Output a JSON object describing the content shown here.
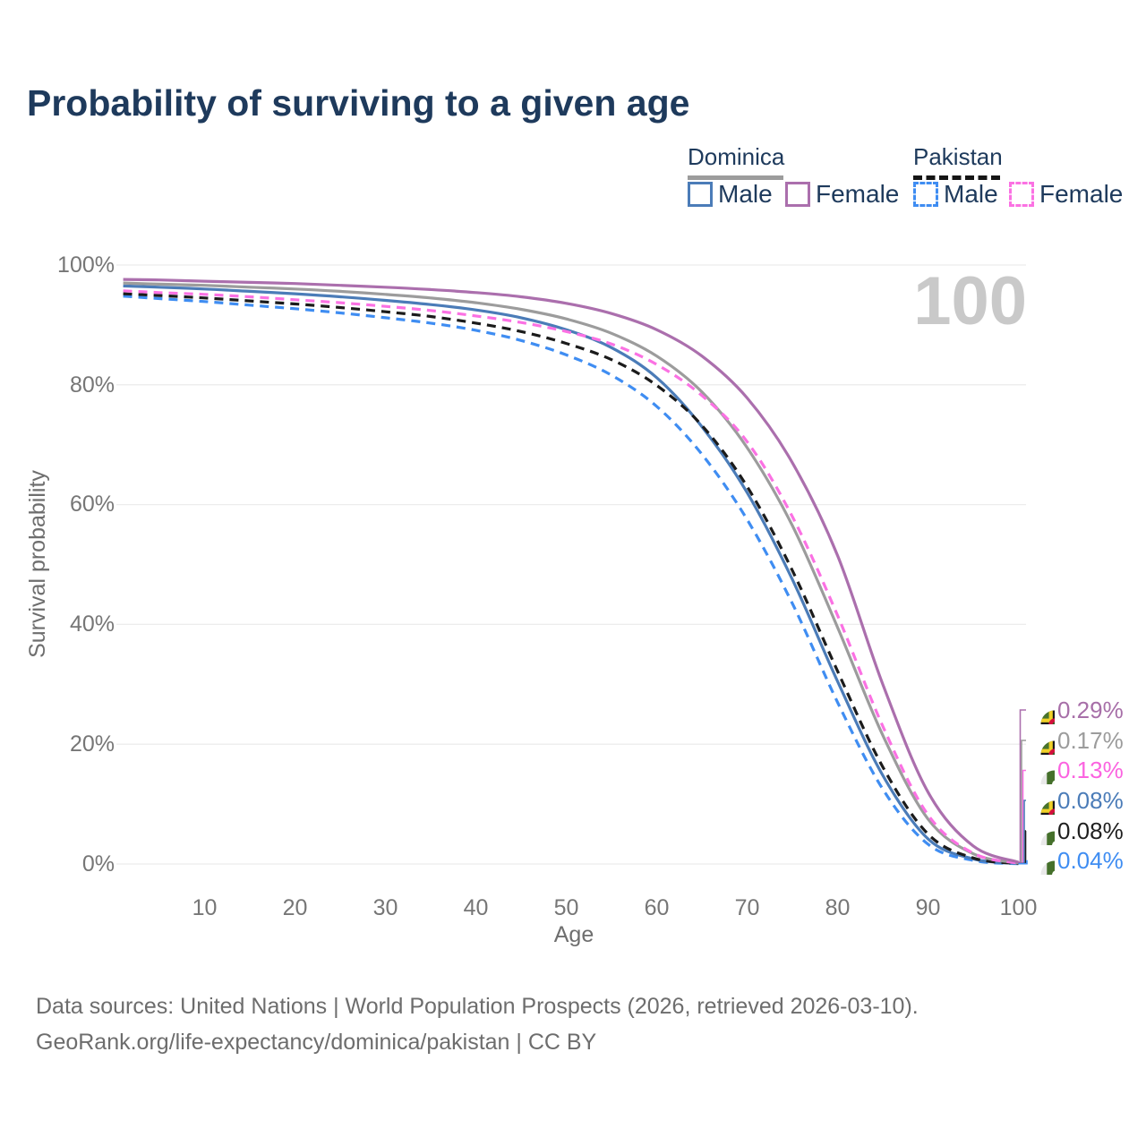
{
  "title": "Probability of surviving to a given age",
  "watermark": "100",
  "legend": {
    "groups": [
      {
        "country": "Dominica",
        "line_style": "solid",
        "items": [
          {
            "label": "Male",
            "color": "#4b7cb8"
          },
          {
            "label": "Female",
            "color": "#ae73b0"
          }
        ]
      },
      {
        "country": "Pakistan",
        "line_style": "dashed",
        "items": [
          {
            "label": "Male",
            "color": "#3f8df2"
          },
          {
            "label": "Female",
            "color": "#fb71e3"
          }
        ]
      }
    ]
  },
  "chart_data": {
    "type": "line",
    "title": "Probability of surviving to a given age",
    "xlabel": "Age",
    "ylabel": "Survival probability",
    "xlim": [
      0,
      100
    ],
    "ylim": [
      0,
      100
    ],
    "grid": "horizontal",
    "x_tick_labels": [
      "10",
      "20",
      "30",
      "40",
      "50",
      "60",
      "70",
      "80",
      "90",
      "100"
    ],
    "y_tick_labels": [
      "0%",
      "20%",
      "40%",
      "60%",
      "80%",
      "100%"
    ],
    "ages": [
      1,
      5,
      10,
      15,
      20,
      25,
      30,
      35,
      40,
      45,
      50,
      55,
      60,
      65,
      70,
      75,
      80,
      85,
      90,
      95,
      100
    ],
    "series": [
      {
        "name": "Dominica Female",
        "country": "Dominica",
        "sex": "Female",
        "style": "solid",
        "color": "#ab6fad",
        "label_color": "#a76fa8",
        "flag": "dominica",
        "end_label": "0.29%",
        "values": [
          97.6,
          97.5,
          97.3,
          97.1,
          96.9,
          96.6,
          96.3,
          95.9,
          95.4,
          94.7,
          93.6,
          91.9,
          89.2,
          84.8,
          77.8,
          67.0,
          51.5,
          30.0,
          12.0,
          3.0,
          0.29
        ]
      },
      {
        "name": "Dominica Both sexes",
        "country": "Dominica",
        "sex": "Both sexes",
        "style": "solid",
        "color": "#9c9c9c",
        "label_color": "#9c9c9c",
        "flag": "dominica",
        "end_label": "0.17%",
        "values": [
          97.0,
          96.8,
          96.6,
          96.3,
          96.0,
          95.6,
          95.1,
          94.5,
          93.7,
          92.6,
          91.0,
          88.6,
          84.8,
          78.8,
          69.5,
          56.5,
          39.5,
          21.5,
          7.5,
          1.7,
          0.17
        ]
      },
      {
        "name": "Pakistan Female",
        "country": "Pakistan",
        "sex": "Female",
        "style": "dashed",
        "color": "#fb71e3",
        "label_color": "#fb63e0",
        "flag": "pakistan",
        "end_label": "0.13%",
        "values": [
          95.7,
          95.4,
          95.1,
          94.7,
          94.2,
          93.7,
          93.1,
          92.4,
          91.5,
          90.4,
          88.9,
          86.8,
          83.4,
          78.2,
          70.5,
          58.0,
          41.5,
          23.0,
          8.2,
          1.8,
          0.13
        ]
      },
      {
        "name": "Dominica Male",
        "country": "Dominica",
        "sex": "Male",
        "style": "solid",
        "color": "#4b7cb8",
        "label_color": "#4b7cb8",
        "flag": "dominica",
        "end_label": "0.08%",
        "values": [
          96.5,
          96.3,
          96.0,
          95.6,
          95.2,
          94.7,
          94.1,
          93.4,
          92.5,
          91.2,
          89.2,
          86.2,
          81.2,
          73.0,
          62.0,
          47.5,
          30.5,
          14.8,
          4.2,
          0.85,
          0.08
        ]
      },
      {
        "name": "Pakistan Both sexes",
        "country": "Pakistan",
        "sex": "Both sexes",
        "style": "dashed",
        "color": "#1b1b1b",
        "label_color": "#1f1f1f",
        "flag": "pakistan",
        "end_label": "0.08%",
        "values": [
          95.2,
          94.9,
          94.5,
          94.0,
          93.5,
          92.9,
          92.2,
          91.4,
          90.3,
          88.9,
          86.9,
          84.2,
          79.9,
          73.2,
          63.0,
          49.0,
          32.2,
          16.2,
          5.0,
          1.0,
          0.08
        ]
      },
      {
        "name": "Pakistan Male",
        "country": "Pakistan",
        "sex": "Male",
        "style": "dashed",
        "color": "#3f8df2",
        "label_color": "#3f8df2",
        "flag": "pakistan",
        "end_label": "0.04%",
        "values": [
          94.8,
          94.4,
          93.9,
          93.3,
          92.7,
          92.0,
          91.2,
          90.3,
          89.1,
          87.4,
          85.0,
          81.6,
          76.4,
          68.4,
          57.5,
          43.5,
          27.0,
          12.5,
          3.3,
          0.6,
          0.04
        ]
      }
    ]
  },
  "footer": {
    "line1": "Data sources: United Nations | World Population Prospects (2026, retrieved 2026-03-10).",
    "line2": "GeoRank.org/life-expectancy/dominica/pakistan | CC BY"
  }
}
